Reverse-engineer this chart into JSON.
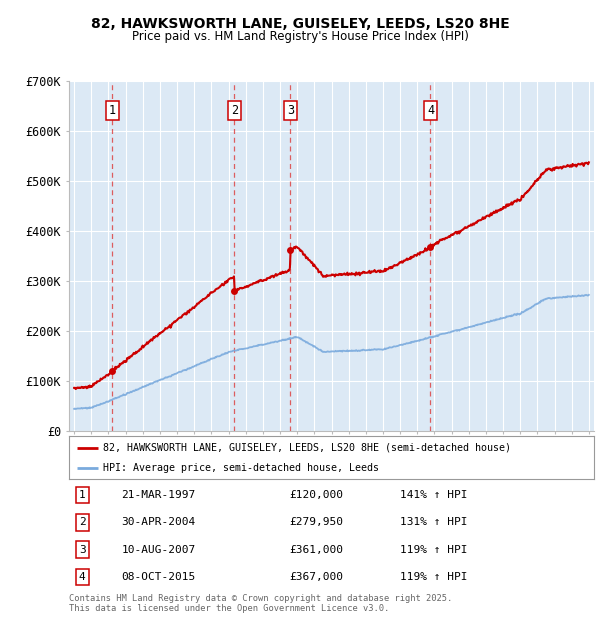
{
  "title": "82, HAWKSWORTH LANE, GUISELEY, LEEDS, LS20 8HE",
  "subtitle": "Price paid vs. HM Land Registry's House Price Index (HPI)",
  "ylim": [
    0,
    700000
  ],
  "yticks": [
    0,
    100000,
    200000,
    300000,
    400000,
    500000,
    600000,
    700000
  ],
  "ytick_labels": [
    "£0",
    "£100K",
    "£200K",
    "£300K",
    "£400K",
    "£500K",
    "£600K",
    "£700K"
  ],
  "xlim": [
    1994.7,
    2025.3
  ],
  "background_color": "#dce9f5",
  "grid_color": "#ffffff",
  "transactions": [
    {
      "num": 1,
      "date": "21-MAR-1997",
      "price": 120000,
      "year": 1997.22,
      "pct": "141%",
      "arrow": "↑"
    },
    {
      "num": 2,
      "date": "30-APR-2004",
      "price": 279950,
      "year": 2004.33,
      "pct": "131%",
      "arrow": "↑"
    },
    {
      "num": 3,
      "date": "10-AUG-2007",
      "price": 361000,
      "year": 2007.61,
      "pct": "119%",
      "arrow": "↑"
    },
    {
      "num": 4,
      "date": "08-OCT-2015",
      "price": 367000,
      "year": 2015.77,
      "pct": "119%",
      "arrow": "↑"
    }
  ],
  "legend_line1": "82, HAWKSWORTH LANE, GUISELEY, LEEDS, LS20 8HE (semi-detached house)",
  "legend_line2": "HPI: Average price, semi-detached house, Leeds",
  "footer": "Contains HM Land Registry data © Crown copyright and database right 2025.\nThis data is licensed under the Open Government Licence v3.0.",
  "red_color": "#cc0000",
  "blue_color": "#7aaadd",
  "dashed_line_color": "#dd4444"
}
